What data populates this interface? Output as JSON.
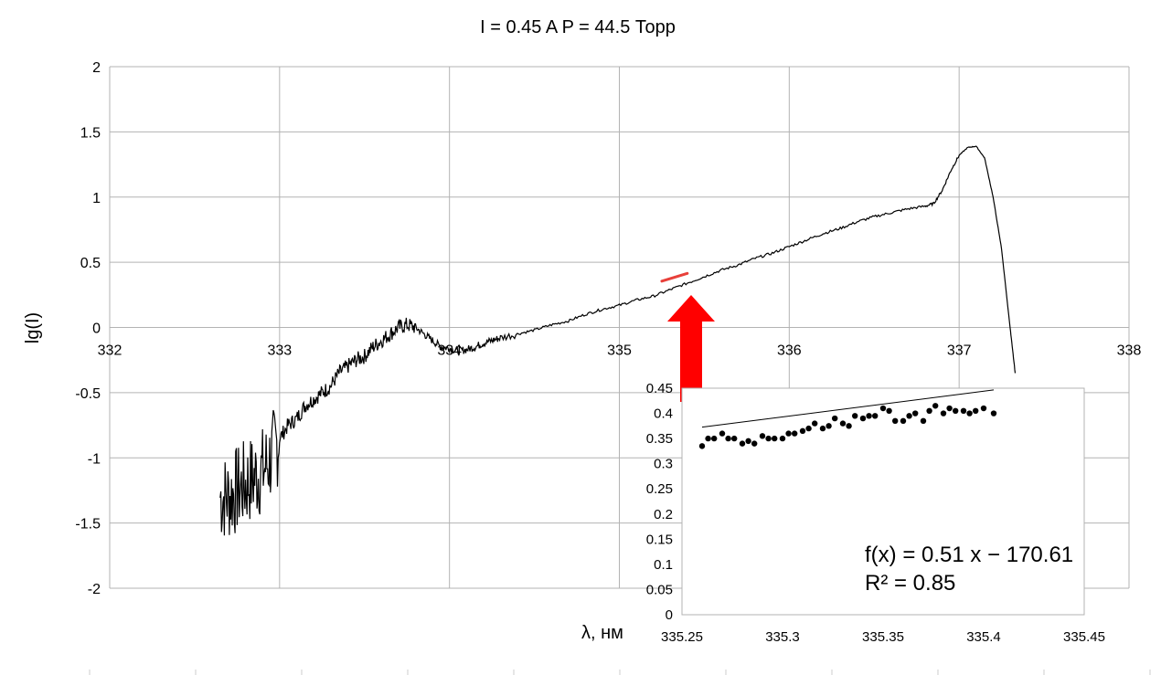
{
  "chart_data": [
    {
      "type": "line",
      "title": "I = 0.45 A  P = 44.5 Торр",
      "xlabel": "λ, нм",
      "ylabel": "lg(I)",
      "xlim": [
        332,
        338
      ],
      "ylim": [
        -2,
        2
      ],
      "x_ticks": [
        "332",
        "333",
        "334",
        "335",
        "336",
        "337",
        "338"
      ],
      "y_ticks": [
        "2",
        "1.5",
        "1",
        "0.5",
        "0",
        "-0.5",
        "-1",
        "-1.5",
        "-2"
      ],
      "grid": true,
      "series": [
        {
          "color": "#000000",
          "x": [
            332.65,
            332.7,
            332.75,
            332.8,
            332.85,
            332.9,
            332.95,
            333.0,
            333.05,
            333.1,
            333.15,
            333.2,
            333.25,
            333.3,
            333.35,
            333.4,
            333.45,
            333.5,
            333.55,
            333.6,
            333.65,
            333.7,
            333.75,
            333.8,
            333.85,
            333.9,
            333.95,
            334.0,
            334.05,
            334.1,
            334.15,
            334.2,
            334.25,
            334.3,
            334.4,
            334.5,
            334.6,
            334.7,
            334.8,
            334.9,
            335.0,
            335.1,
            335.2,
            335.3,
            335.4,
            335.5,
            335.6,
            335.7,
            335.8,
            335.9,
            336.0,
            336.1,
            336.2,
            336.3,
            336.4,
            336.5,
            336.6,
            336.7,
            336.8,
            336.85,
            336.9,
            336.95,
            337.0,
            337.05,
            337.1,
            337.15,
            337.2,
            337.25,
            337.3,
            337.33
          ],
          "y": [
            -1.3,
            -1.3,
            -1.25,
            -1.2,
            -1.15,
            -1.1,
            -1.0,
            -0.85,
            -0.75,
            -0.7,
            -0.6,
            -0.55,
            -0.5,
            -0.45,
            -0.35,
            -0.3,
            -0.25,
            -0.22,
            -0.15,
            -0.1,
            -0.05,
            0.0,
            0.02,
            0.0,
            -0.05,
            -0.1,
            -0.15,
            -0.16,
            -0.18,
            -0.17,
            -0.15,
            -0.12,
            -0.1,
            -0.08,
            -0.05,
            -0.02,
            0.02,
            0.05,
            0.1,
            0.14,
            0.17,
            0.21,
            0.24,
            0.29,
            0.34,
            0.39,
            0.44,
            0.48,
            0.53,
            0.57,
            0.62,
            0.67,
            0.72,
            0.76,
            0.81,
            0.85,
            0.88,
            0.91,
            0.93,
            0.95,
            1.05,
            1.2,
            1.32,
            1.38,
            1.39,
            1.3,
            1.0,
            0.6,
            0.0,
            -0.35
          ]
        }
      ],
      "highlight_x": [
        335.25,
        335.4
      ]
    },
    {
      "type": "scatter",
      "title": "",
      "xlabel": "",
      "ylabel": "",
      "xlim": [
        335.25,
        335.45
      ],
      "ylim": [
        0,
        0.45
      ],
      "x_ticks": [
        "335.25",
        "335.3",
        "335.35",
        "335.4",
        "335.45"
      ],
      "y_ticks": [
        "0.45",
        "0.4",
        "0.35",
        "0.3",
        "0.25",
        "0.2",
        "0.15",
        "0.1",
        "0.05",
        "0"
      ],
      "grid": false,
      "trendline": {
        "slope": 0.51,
        "intercept": -170.61,
        "equation": "f(x) = 0.51 x − 170.61",
        "r2": "R² = 0.85"
      },
      "series": [
        {
          "color": "#000000",
          "x": [
            335.26,
            335.263,
            335.266,
            335.27,
            335.273,
            335.276,
            335.28,
            335.283,
            335.286,
            335.29,
            335.293,
            335.296,
            335.3,
            335.303,
            335.306,
            335.31,
            335.313,
            335.316,
            335.32,
            335.323,
            335.326,
            335.33,
            335.333,
            335.336,
            335.34,
            335.343,
            335.346,
            335.35,
            335.353,
            335.356,
            335.36,
            335.363,
            335.366,
            335.37,
            335.373,
            335.376,
            335.38,
            335.383,
            335.386,
            335.39,
            335.393,
            335.396,
            335.4,
            335.405
          ],
          "y": [
            0.335,
            0.35,
            0.35,
            0.36,
            0.35,
            0.35,
            0.34,
            0.345,
            0.34,
            0.355,
            0.35,
            0.35,
            0.35,
            0.36,
            0.36,
            0.365,
            0.37,
            0.38,
            0.37,
            0.375,
            0.39,
            0.38,
            0.375,
            0.395,
            0.39,
            0.395,
            0.395,
            0.41,
            0.405,
            0.385,
            0.385,
            0.395,
            0.4,
            0.385,
            0.405,
            0.415,
            0.4,
            0.41,
            0.405,
            0.405,
            0.4,
            0.405,
            0.41,
            0.4
          ]
        }
      ]
    }
  ]
}
